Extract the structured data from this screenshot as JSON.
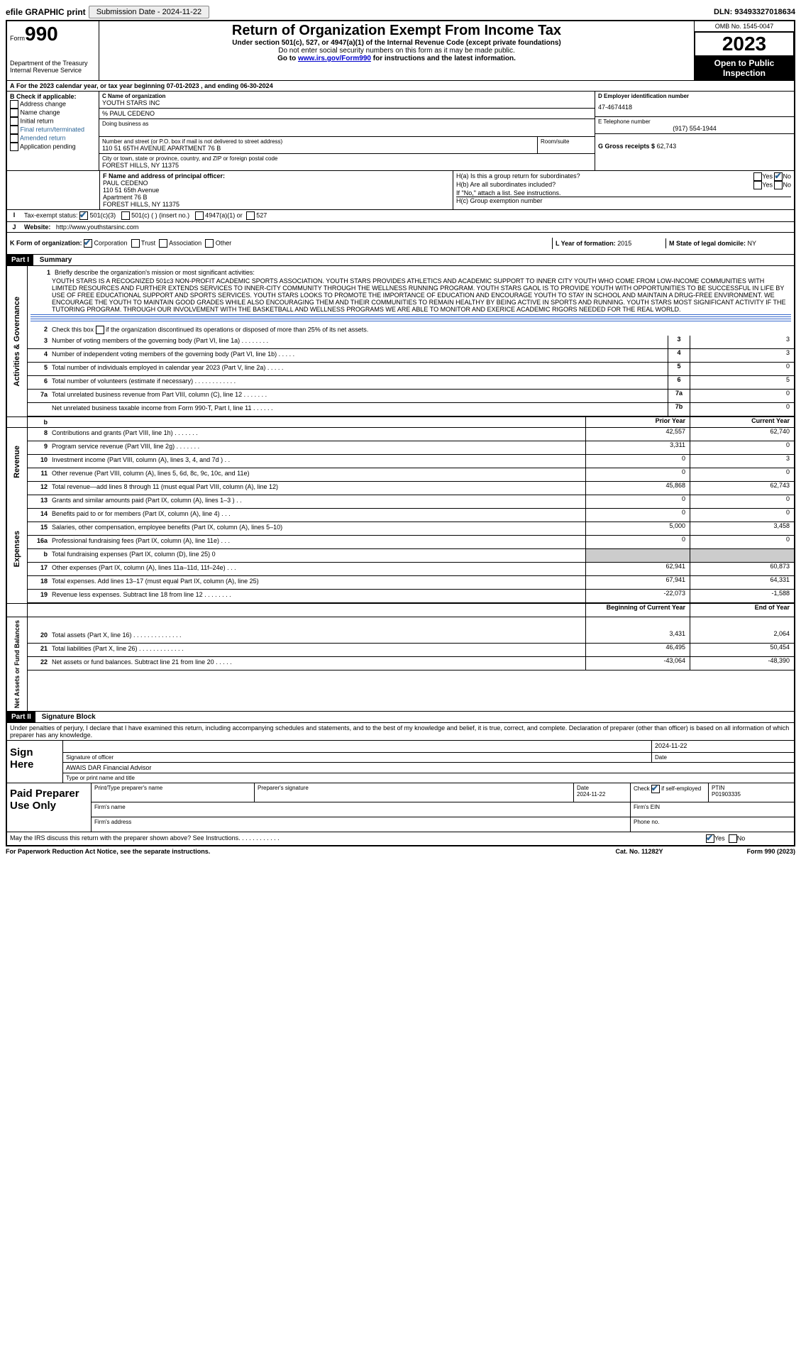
{
  "header": {
    "efile_label": "efile GRAPHIC print",
    "submission_label": "Submission Date - 2024-11-22",
    "dln": "DLN: 93493327018634"
  },
  "title_block": {
    "form_prefix": "Form",
    "form_number": "990",
    "title": "Return of Organization Exempt From Income Tax",
    "subtitle1": "Under section 501(c), 527, or 4947(a)(1) of the Internal Revenue Code (except private foundations)",
    "subtitle2": "Do not enter social security numbers on this form as it may be made public.",
    "subtitle3_prefix": "Go to ",
    "subtitle3_link": "www.irs.gov/Form990",
    "subtitle3_suffix": " for instructions and the latest information.",
    "dept": "Department of the Treasury",
    "irs": "Internal Revenue Service",
    "omb": "OMB No. 1545-0047",
    "year": "2023",
    "open_public": "Open to Public Inspection"
  },
  "period": {
    "line_a_prefix": "For the 2023 calendar year, or tax year beginning ",
    "begin": "07-01-2023",
    "middle": " , and ending ",
    "end": "06-30-2024"
  },
  "box_b": {
    "label": "B Check if applicable:",
    "addr_change": "Address change",
    "name_change": "Name change",
    "initial_return": "Initial return",
    "final_return": "Final return/terminated",
    "amended": "Amended return",
    "app_pending": "Application pending"
  },
  "box_c": {
    "label_name": "C Name of organization",
    "org_name": "YOUTH STARS INC",
    "care_of": "% PAUL CEDENO",
    "dba_label": "Doing business as",
    "addr_label": "Number and street (or P.O. box if mail is not delivered to street address)",
    "addr": "110 51 65TH AVENUE APARTMENT 76 B",
    "room_label": "Room/suite",
    "city_label": "City or town, state or province, country, and ZIP or foreign postal code",
    "city": "FOREST HILLS, NY  11375"
  },
  "box_d": {
    "label": "D Employer identification number",
    "value": "47-4674418"
  },
  "box_e": {
    "label": "E Telephone number",
    "value": "(917) 554-1944"
  },
  "box_g": {
    "label": "G Gross receipts $",
    "value": "62,743"
  },
  "box_f": {
    "label": "F Name and address of principal officer:",
    "line1": "PAUL CEDENO",
    "line2": "110 51 65th Avenue",
    "line3": "Apartment 76 B",
    "line4": "FOREST HILLS, NY  11375"
  },
  "box_h": {
    "ha_label": "H(a)  Is this a group return for subordinates?",
    "hb_label": "H(b)  Are all subordinates included?",
    "hb_note": "If \"No,\" attach a list. See instructions.",
    "hc_label": "H(c)  Group exemption number ",
    "yes": "Yes",
    "no": "No"
  },
  "box_i": {
    "label": "Tax-exempt status:",
    "c3": "501(c)(3)",
    "c_other": "501(c) (  ) (insert no.)",
    "a1": "4947(a)(1) or",
    "s527": "527"
  },
  "box_j": {
    "label": "Website:",
    "value": "http://www.youthstarsinc.com"
  },
  "box_k": {
    "label": "K Form of organization:",
    "corp": "Corporation",
    "trust": "Trust",
    "assoc": "Association",
    "other": "Other"
  },
  "box_l": {
    "label": "L Year of formation:",
    "value": "2015"
  },
  "box_m": {
    "label": "M State of legal domicile:",
    "value": "NY"
  },
  "part1": {
    "header": "Part I",
    "title": "Summary",
    "mission_label": "Briefly describe the organization's mission or most significant activities:",
    "mission": "YOUTH STARS IS A RECOGNIZED 501c3 NON-PROFIT ACADEMIC SPORTS ASSOCIATION. YOUTH STARS PROVIDES ATHLETICS AND ACADEMIC SUPPORT TO INNER CITY YOUTH WHO COME FROM LOW-INCOME COMMUNITIES WITH LIMITED RESOURCES AND FURTHER EXTENDS SERVICES TO INNER-CITY COMMUNITY THROUGH THE WELLNESS RUNNING PROGRAM. YOUTH STARS GAOL IS TO PROVIDE YOUTH WITH OPPORTUNITIES TO BE SUCCESSFUL IN LIFE BY USE OF FREE EDUCATIONAL SUPPORT AND SPORTS SERVICES. YOUTH STARS LOOKS TO PROMOTE THE IMPORTANCE OF EDUCATION AND ENCOURAGE YOUTH TO STAY IN SCHOOL AND MAINTAIN A DRUG-FREE ENVIRONMENT. WE ENCOURAGE THE YOUTH TO MAINTAIN GOOD GRADES WHILE ALSO ENCOURAGING THEM AND THEIR COMMUNITIES TO REMAIN HEALTHY BY BEING ACTIVE IN SPORTS AND RUNNING. YOUTH STARS MOST SIGNIFICANT ACTIVITY IF THE TUTORING PROGRAM. THROUGH OUR INVOLVEMENT WITH THE BASKETBALL AND WELLNESS PROGRAMS WE ARE ABLE TO MONITOR AND EXERICE ACADEMIC RIGORS NEEDED FOR THE REAL WORLD.",
    "line2": "Check this box       if the organization discontinued its operations or disposed of more than 25% of its net assets.",
    "lines_ag": [
      {
        "n": "3",
        "d": "Number of voting members of the governing body (Part VI, line 1a) . . . . . . . .",
        "k": "3",
        "v": "3"
      },
      {
        "n": "4",
        "d": "Number of independent voting members of the governing body (Part VI, line 1b) . . . . .",
        "k": "4",
        "v": "3"
      },
      {
        "n": "5",
        "d": "Total number of individuals employed in calendar year 2023 (Part V, line 2a) . . . . .",
        "k": "5",
        "v": "0"
      },
      {
        "n": "6",
        "d": "Total number of volunteers (estimate if necessary) . . . . . . . . . . . .",
        "k": "6",
        "v": "5"
      },
      {
        "n": "7a",
        "d": "Total unrelated business revenue from Part VIII, column (C), line 12 . . . . . . .",
        "k": "7a",
        "v": "0"
      },
      {
        "n": "",
        "d": "Net unrelated business taxable income from Form 990-T, Part I, line 11 . . . . . .",
        "k": "7b",
        "v": "0"
      }
    ],
    "col_prior": "Prior Year",
    "col_current": "Current Year",
    "lines_rev": [
      {
        "n": "8",
        "d": "Contributions and grants (Part VIII, line 1h) . . . . . . .",
        "p": "42,557",
        "c": "62,740"
      },
      {
        "n": "9",
        "d": "Program service revenue (Part VIII, line 2g) . . . . . . .",
        "p": "3,311",
        "c": "0"
      },
      {
        "n": "10",
        "d": "Investment income (Part VIII, column (A), lines 3, 4, and 7d ) . .",
        "p": "0",
        "c": "3"
      },
      {
        "n": "11",
        "d": "Other revenue (Part VIII, column (A), lines 5, 6d, 8c, 9c, 10c, and 11e)",
        "p": "0",
        "c": "0"
      },
      {
        "n": "12",
        "d": "Total revenue—add lines 8 through 11 (must equal Part VIII, column (A), line 12)",
        "p": "45,868",
        "c": "62,743"
      }
    ],
    "lines_exp": [
      {
        "n": "13",
        "d": "Grants and similar amounts paid (Part IX, column (A), lines 1–3 ) . .",
        "p": "0",
        "c": "0"
      },
      {
        "n": "14",
        "d": "Benefits paid to or for members (Part IX, column (A), line 4) . . .",
        "p": "0",
        "c": "0"
      },
      {
        "n": "15",
        "d": "Salaries, other compensation, employee benefits (Part IX, column (A), lines 5–10)",
        "p": "5,000",
        "c": "3,458"
      },
      {
        "n": "16a",
        "d": "Professional fundraising fees (Part IX, column (A), line 11e) . . .",
        "p": "0",
        "c": "0"
      },
      {
        "n": "b",
        "d": "Total fundraising expenses (Part IX, column (D), line 25) 0",
        "p": "",
        "c": "",
        "shaded": true
      },
      {
        "n": "17",
        "d": "Other expenses (Part IX, column (A), lines 11a–11d, 11f–24e) . . .",
        "p": "62,941",
        "c": "60,873"
      },
      {
        "n": "18",
        "d": "Total expenses. Add lines 13–17 (must equal Part IX, column (A), line 25)",
        "p": "67,941",
        "c": "64,331"
      },
      {
        "n": "19",
        "d": "Revenue less expenses. Subtract line 18 from line 12 . . . . . . . .",
        "p": "-22,073",
        "c": "-1,588"
      }
    ],
    "col_begin": "Beginning of Current Year",
    "col_end": "End of Year",
    "lines_na": [
      {
        "n": "20",
        "d": "Total assets (Part X, line 16) . . . . . . . . . . . . . .",
        "p": "3,431",
        "c": "2,064"
      },
      {
        "n": "21",
        "d": "Total liabilities (Part X, line 26) . . . . . . . . . . . . .",
        "p": "46,495",
        "c": "50,454"
      },
      {
        "n": "22",
        "d": "Net assets or fund balances. Subtract line 21 from line 20 . . . . .",
        "p": "-43,064",
        "c": "-48,390"
      }
    ],
    "vlabel_ag": "Activities & Governance",
    "vlabel_rev": "Revenue",
    "vlabel_exp": "Expenses",
    "vlabel_na": "Net Assets or Fund Balances"
  },
  "part2": {
    "header": "Part II",
    "title": "Signature Block",
    "perjury": "Under penalties of perjury, I declare that I have examined this return, including accompanying schedules and statements, and to the best of my knowledge and belief, it is true, correct, and complete. Declaration of preparer (other than officer) is based on all information of which preparer has any knowledge.",
    "sign_here": "Sign Here",
    "sig_officer": "Signature of officer",
    "officer_name": "AWAIS DAR  Financial Advisor",
    "type_name": "Type or print name and title",
    "date_label": "Date",
    "date_val": "2024-11-22",
    "paid": "Paid Preparer Use Only",
    "prep_name_label": "Print/Type preparer's name",
    "prep_sig_label": "Preparer's signature",
    "prep_date": "2024-11-22",
    "check_if": "Check         if self-employed",
    "ptin_label": "PTIN",
    "ptin": "P01903335",
    "firm_name": "Firm's name",
    "firm_ein": "Firm's EIN",
    "firm_addr": "Firm's address",
    "phone": "Phone no.",
    "discuss": "May the IRS discuss this return with the preparer shown above? See Instructions. . . . . . . . . . . .",
    "paperwork": "For Paperwork Reduction Act Notice, see the separate instructions.",
    "cat": "Cat. No. 11282Y",
    "form_foot": "Form 990 (2023)"
  }
}
